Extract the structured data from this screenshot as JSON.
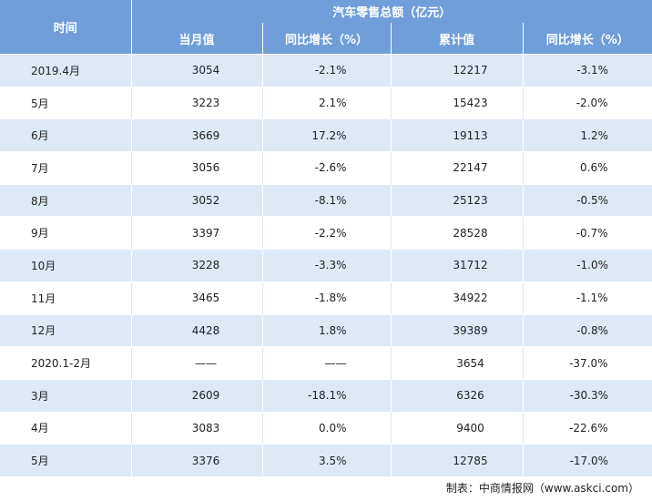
{
  "header": {
    "time": "时间",
    "title": "汽车零售总额（亿元）",
    "columns": [
      "当月值",
      "同比增长（%）",
      "累计值",
      "同比增长（%）"
    ]
  },
  "rows": [
    {
      "time": "2019.4月",
      "month": "3054",
      "month_yoy": "-2.1%",
      "cum": "12217",
      "cum_yoy": "-3.1%"
    },
    {
      "time": "5月",
      "month": "3223",
      "month_yoy": "2.1%",
      "cum": "15423",
      "cum_yoy": "-2.0%"
    },
    {
      "time": "6月",
      "month": "3669",
      "month_yoy": "17.2%",
      "cum": "19113",
      "cum_yoy": "1.2%"
    },
    {
      "time": "7月",
      "month": "3056",
      "month_yoy": "-2.6%",
      "cum": "22147",
      "cum_yoy": "0.6%"
    },
    {
      "time": "8月",
      "month": "3052",
      "month_yoy": "-8.1%",
      "cum": "25123",
      "cum_yoy": "-0.5%"
    },
    {
      "time": "9月",
      "month": "3397",
      "month_yoy": "-2.2%",
      "cum": "28528",
      "cum_yoy": "-0.7%"
    },
    {
      "time": "10月",
      "month": "3228",
      "month_yoy": "-3.3%",
      "cum": "31712",
      "cum_yoy": "-1.0%"
    },
    {
      "time": "11月",
      "month": "3465",
      "month_yoy": "-1.8%",
      "cum": "34922",
      "cum_yoy": "-1.1%"
    },
    {
      "time": "12月",
      "month": "4428",
      "month_yoy": "1.8%",
      "cum": "39389",
      "cum_yoy": "-0.8%"
    },
    {
      "time": "2020.1-2月",
      "month": "——",
      "month_yoy": "——",
      "cum": "3654",
      "cum_yoy": "-37.0%"
    },
    {
      "time": "3月",
      "month": "2609",
      "month_yoy": "-18.1%",
      "cum": "6326",
      "cum_yoy": "-30.3%"
    },
    {
      "time": "4月",
      "month": "3083",
      "month_yoy": "0.0%",
      "cum": "9400",
      "cum_yoy": "-22.6%"
    },
    {
      "time": "5月",
      "month": "3376",
      "month_yoy": "3.5%",
      "cum": "12785",
      "cum_yoy": "-17.0%"
    }
  ],
  "source": "制表：中商情报网（www.askci.com）",
  "colors": {
    "header": "#6f9ed8",
    "stripe": "#dde9f7"
  }
}
